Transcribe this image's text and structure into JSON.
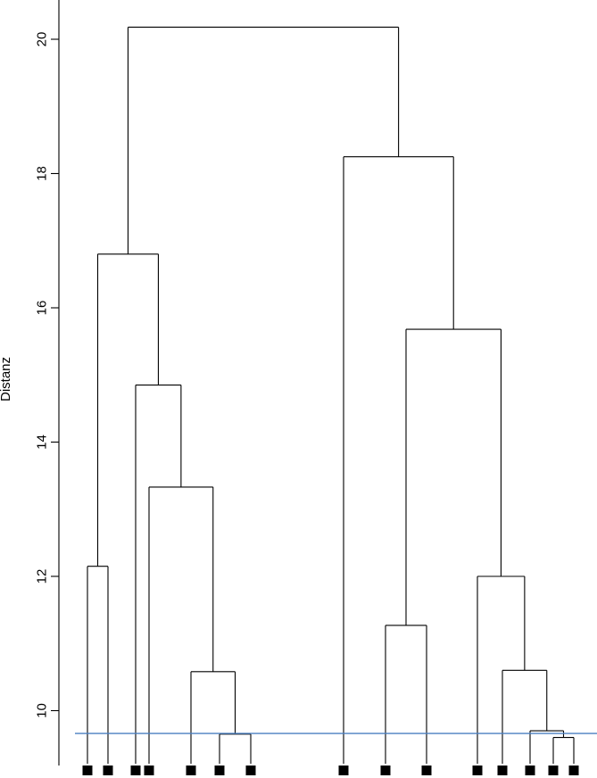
{
  "chart_data": {
    "type": "dendrogram",
    "title": "",
    "xlabel": "",
    "ylabel": "Distanz",
    "ylim": [
      9.2,
      20.6
    ],
    "yticks": [
      10,
      12,
      14,
      16,
      18,
      20
    ],
    "ytick_labels": [
      "10",
      "12",
      "14",
      "16",
      "18",
      "20"
    ],
    "leaves": 15,
    "leaf_marker": "filled-square",
    "cut_height": 9.66,
    "cut_color": "#4a7fc0",
    "tree": {
      "h": 20.18,
      "children": [
        {
          "h": 16.8,
          "children": [
            {
              "h": 12.15,
              "children": [
                {
                  "leaf": 1
                },
                {
                  "leaf": 2
                }
              ]
            },
            {
              "h": 14.85,
              "children": [
                {
                  "leaf": 3
                },
                {
                  "h": 13.33,
                  "children": [
                    {
                      "leaf": 4
                    },
                    {
                      "h": 10.58,
                      "children": [
                        {
                          "leaf": 5
                        },
                        {
                          "h": 9.65,
                          "children": [
                            {
                              "leaf": 6
                            },
                            {
                              "leaf": 7
                            }
                          ]
                        }
                      ]
                    }
                  ]
                }
              ]
            }
          ]
        },
        {
          "h": 18.25,
          "children": [
            {
              "leaf": 8
            },
            {
              "h": 15.68,
              "children": [
                {
                  "h": 11.27,
                  "children": [
                    {
                      "leaf": 9
                    },
                    {
                      "leaf": 10
                    }
                  ]
                },
                {
                  "h": 12.0,
                  "children": [
                    {
                      "leaf": 11
                    },
                    {
                      "h": 10.6,
                      "children": [
                        {
                          "leaf": 12
                        },
                        {
                          "h": 9.7,
                          "children": [
                            {
                              "leaf": 13
                            },
                            {
                              "h": 9.6,
                              "children": [
                                {
                                  "leaf": 14
                                },
                                {
                                  "leaf": 15
                                }
                              ]
                            }
                          ]
                        }
                      ]
                    }
                  ]
                }
              ]
            }
          ]
        }
      ]
    }
  }
}
